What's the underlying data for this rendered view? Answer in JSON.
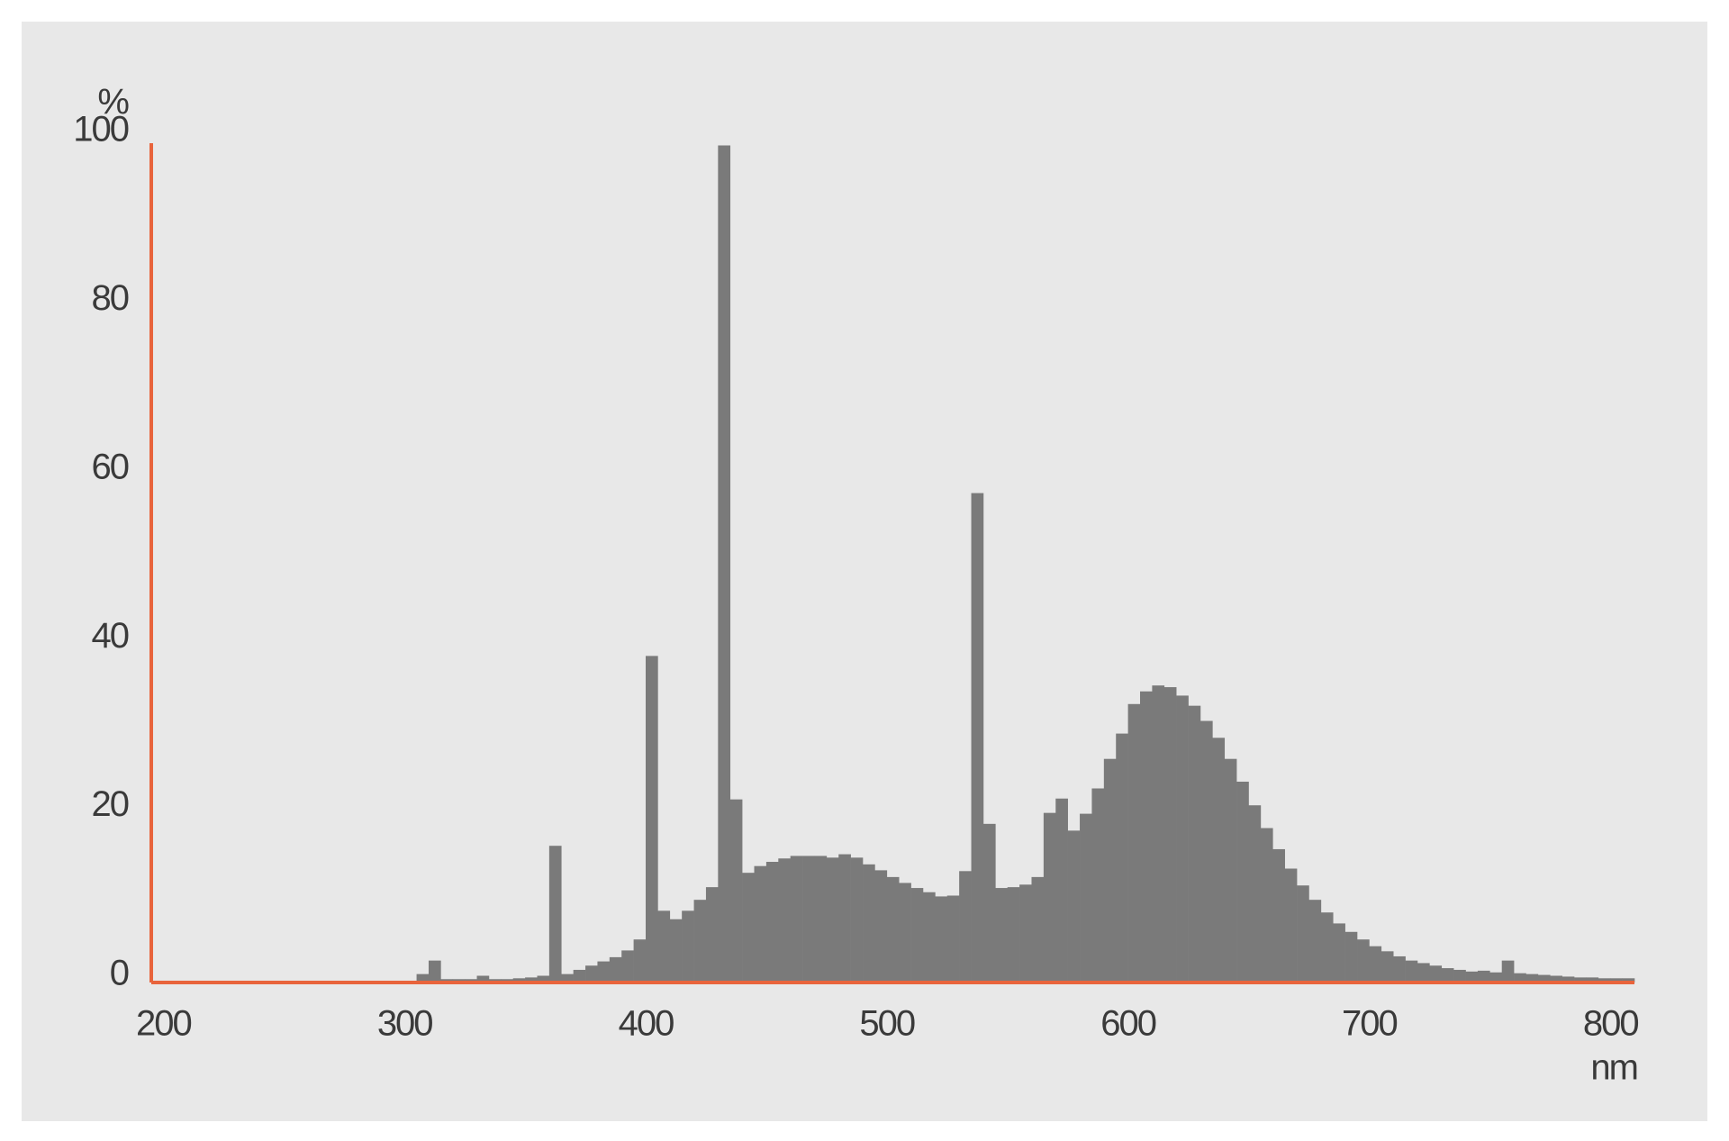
{
  "chart_data": {
    "type": "histogram",
    "ylabel": "%",
    "xlabel": "nm",
    "bins": [
      300,
      305,
      310,
      315,
      320,
      325,
      330,
      335,
      340,
      345,
      350,
      355,
      360,
      365,
      370,
      375,
      380,
      385,
      390,
      395,
      400,
      405,
      410,
      415,
      420,
      425,
      430,
      435,
      440,
      445,
      450,
      455,
      460,
      465,
      470,
      475,
      480,
      485,
      490,
      495,
      500,
      505,
      510,
      515,
      520,
      525,
      530,
      535,
      540,
      545,
      550,
      555,
      560,
      565,
      570,
      575,
      580,
      585,
      590,
      595,
      600,
      605,
      610,
      615,
      620,
      625,
      630,
      635,
      640,
      645,
      650,
      655,
      660,
      665,
      670,
      675,
      680,
      685,
      690,
      695,
      700,
      705,
      710,
      715,
      720,
      725,
      730,
      735,
      740,
      745,
      750,
      755,
      760,
      765,
      770,
      775,
      780,
      785,
      790,
      795,
      800,
      805,
      810
    ],
    "counts": [
      0.2,
      1,
      2.6,
      0.4,
      0.4,
      0.4,
      0.8,
      0.4,
      0.4,
      0.5,
      0.6,
      0.8,
      16.2,
      1,
      1.5,
      2,
      2.5,
      3,
      3.8,
      5.1,
      38.7,
      8.5,
      7.5,
      8.5,
      9.8,
      11.3,
      99.2,
      21.7,
      13,
      13.8,
      14.3,
      14.7,
      15,
      15,
      15,
      14.8,
      15.2,
      14.8,
      14,
      13.3,
      12.5,
      11.8,
      11.2,
      10.7,
      10.2,
      10.3,
      13.2,
      58,
      18.8,
      11.2,
      11.3,
      11.6,
      12.5,
      20.1,
      21.8,
      18,
      20,
      23,
      26.5,
      29.5,
      33,
      34.5,
      35.2,
      35,
      34,
      32.8,
      31,
      29,
      26.5,
      23.8,
      21,
      18.3,
      15.8,
      13.5,
      11.5,
      9.8,
      8.3,
      7,
      6,
      5.1,
      4.3,
      3.7,
      3.1,
      2.6,
      2.3,
      2,
      1.7,
      1.5,
      1.3,
      1.4,
      1.2,
      2.6,
      1.1,
      1,
      0.9,
      0.8,
      0.7,
      0.6,
      0.6,
      0.5,
      0.5,
      0.5
    ],
    "color": "#7a7a7a",
    "axis_color": "#e8643c",
    "xlim": [
      195,
      810
    ],
    "xticks": [
      200,
      300,
      400,
      500,
      600,
      700,
      800
    ],
    "ylim": [
      0,
      100
    ],
    "yticks": [
      0,
      20,
      40,
      60,
      80,
      100
    ],
    "grid": false
  }
}
